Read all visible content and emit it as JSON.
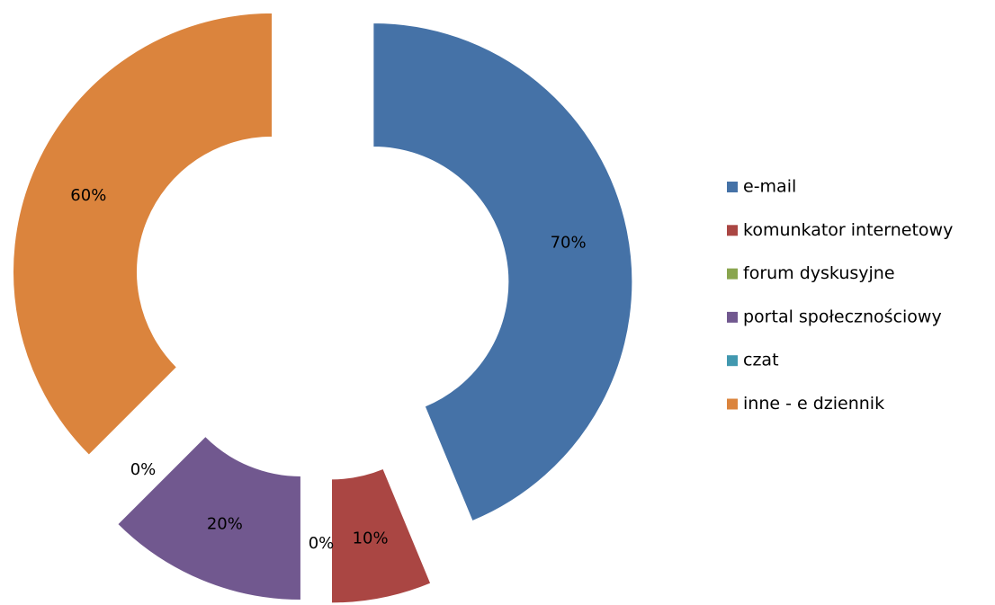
{
  "chart_data": {
    "type": "doughnut",
    "categories": [
      "e-mail",
      "komunkator internetowy",
      "forum dyskusyjne",
      "portal społecznościowy",
      "czat",
      "inne - e dziennik"
    ],
    "values": [
      70,
      10,
      0,
      20,
      0,
      60
    ],
    "value_labels": [
      "70%",
      "10%",
      "0%",
      "20%",
      "0%",
      "60%"
    ],
    "colors": [
      "#4572a7",
      "#aa4643",
      "#89a54e",
      "#71588f",
      "#4198af",
      "#db843d"
    ],
    "legend": "right"
  }
}
